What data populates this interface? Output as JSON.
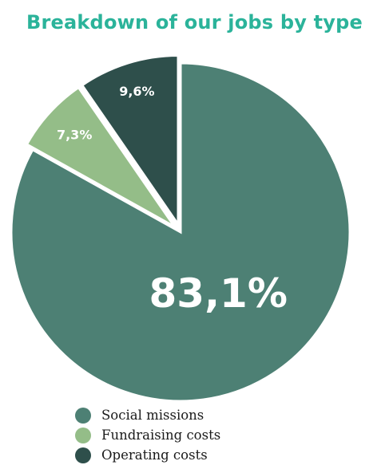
{
  "chart_data": {
    "type": "pie",
    "title": "Breakdown of our jobs by type",
    "slices": [
      {
        "name": "Social missions",
        "value": 83.1,
        "label": "83,1%",
        "color": "#4d8074",
        "exploded": false
      },
      {
        "name": "Fundraising costs",
        "value": 7.3,
        "label": "7,3%",
        "color": "#94bd88",
        "exploded": true
      },
      {
        "name": "Operating costs",
        "value": 9.6,
        "label": "9,6%",
        "color": "#2e4f4b",
        "exploded": true
      }
    ],
    "start_angle_deg": 0,
    "direction": "clockwise",
    "legend_position": "bottom-left",
    "legend": [
      "Social missions",
      "Fundraising costs",
      "Operating costs"
    ]
  }
}
